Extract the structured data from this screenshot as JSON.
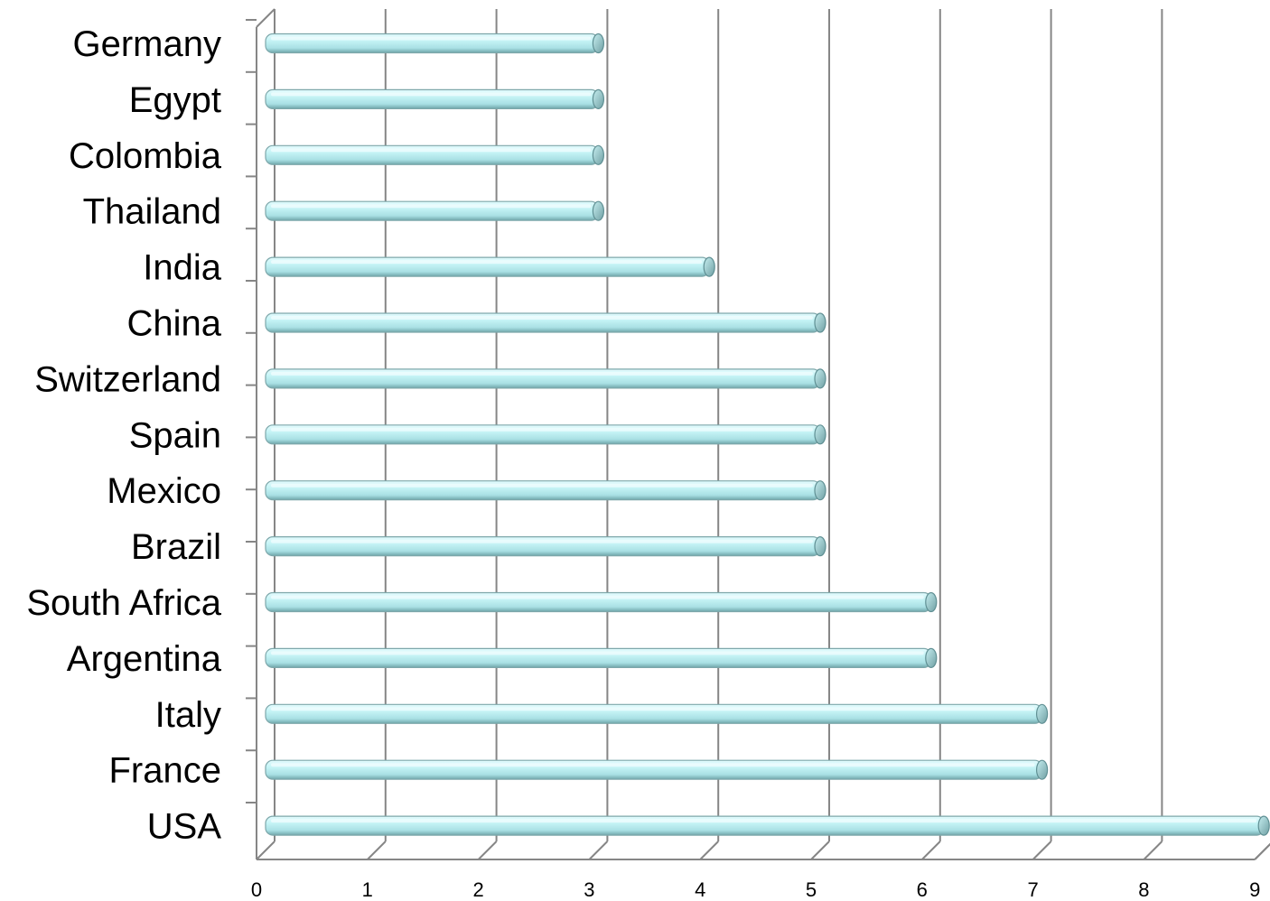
{
  "chart_data": {
    "type": "bar",
    "orientation": "horizontal",
    "title": "",
    "xlabel": "",
    "ylabel": "",
    "categories": [
      "USA",
      "France",
      "Italy",
      "Argentina",
      "South Africa",
      "Brazil",
      "Mexico",
      "Spain",
      "Switzerland",
      "China",
      "India",
      "Thailand",
      "Colombia",
      "Egypt",
      "Germany"
    ],
    "values": [
      9,
      7,
      7,
      6,
      6,
      5,
      5,
      5,
      5,
      5,
      4,
      3,
      3,
      3,
      3
    ],
    "xlim": [
      0,
      9
    ],
    "xticks": [
      "0",
      "1",
      "2",
      "3",
      "4",
      "5",
      "6",
      "7",
      "8",
      "9"
    ],
    "grid": true,
    "legend": "none",
    "colors": {
      "bar_light": "#e4fbfd",
      "bar_mid": "#b4ecef",
      "bar_dark": "#6fa6aa",
      "bar_cap": "#8fc6ca",
      "grid": "#868686",
      "axis": "#868686"
    }
  }
}
